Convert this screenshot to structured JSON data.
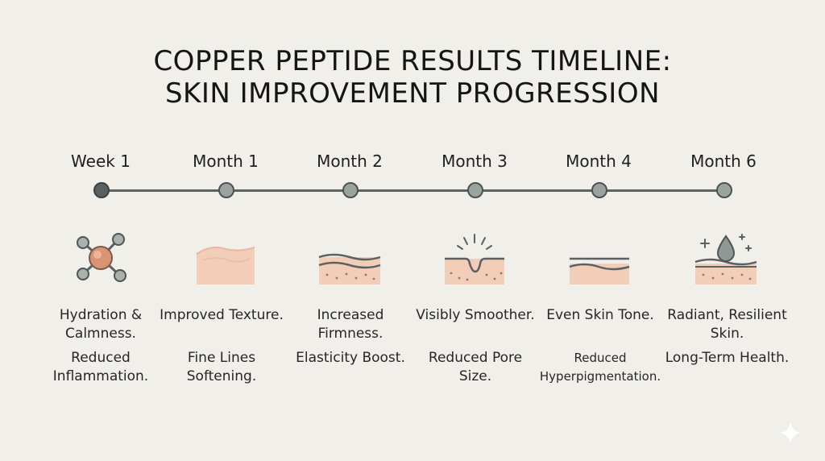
{
  "title": {
    "line1": "COPPER PEPTIDE RESULTS TIMELINE:",
    "line2": "SKIN IMPROVEMENT PROGRESSION"
  },
  "milestones": [
    {
      "period": "Week 1",
      "icon": "molecule-icon",
      "desc_a": "Hydration & Calmness.",
      "desc_b": "Reduced Inflammation."
    },
    {
      "period": "Month 1",
      "icon": "skin-texture-icon",
      "desc_a": "Improved Texture.",
      "desc_b": "Fine Lines Softening."
    },
    {
      "period": "Month 2",
      "icon": "skin-layers-icon",
      "desc_a": "Increased Firmness.",
      "desc_b": "Elasticity Boost."
    },
    {
      "period": "Month 3",
      "icon": "pore-icon",
      "desc_a": "Visibly Smoother.",
      "desc_b": "Reduced Pore Size."
    },
    {
      "period": "Month 4",
      "icon": "even-tone-icon",
      "desc_a": "Even Skin Tone.",
      "desc_b": "Reduced Hyperpigmentation."
    },
    {
      "period": "Month 6",
      "icon": "droplet-skin-icon",
      "desc_a": "Radiant, Resilient Skin.",
      "desc_b": "Long-Term Health."
    }
  ],
  "colors": {
    "background": "#f0efea",
    "skin": "#f4d6c3",
    "line": "#5d6360",
    "node": "#9aa39f"
  }
}
